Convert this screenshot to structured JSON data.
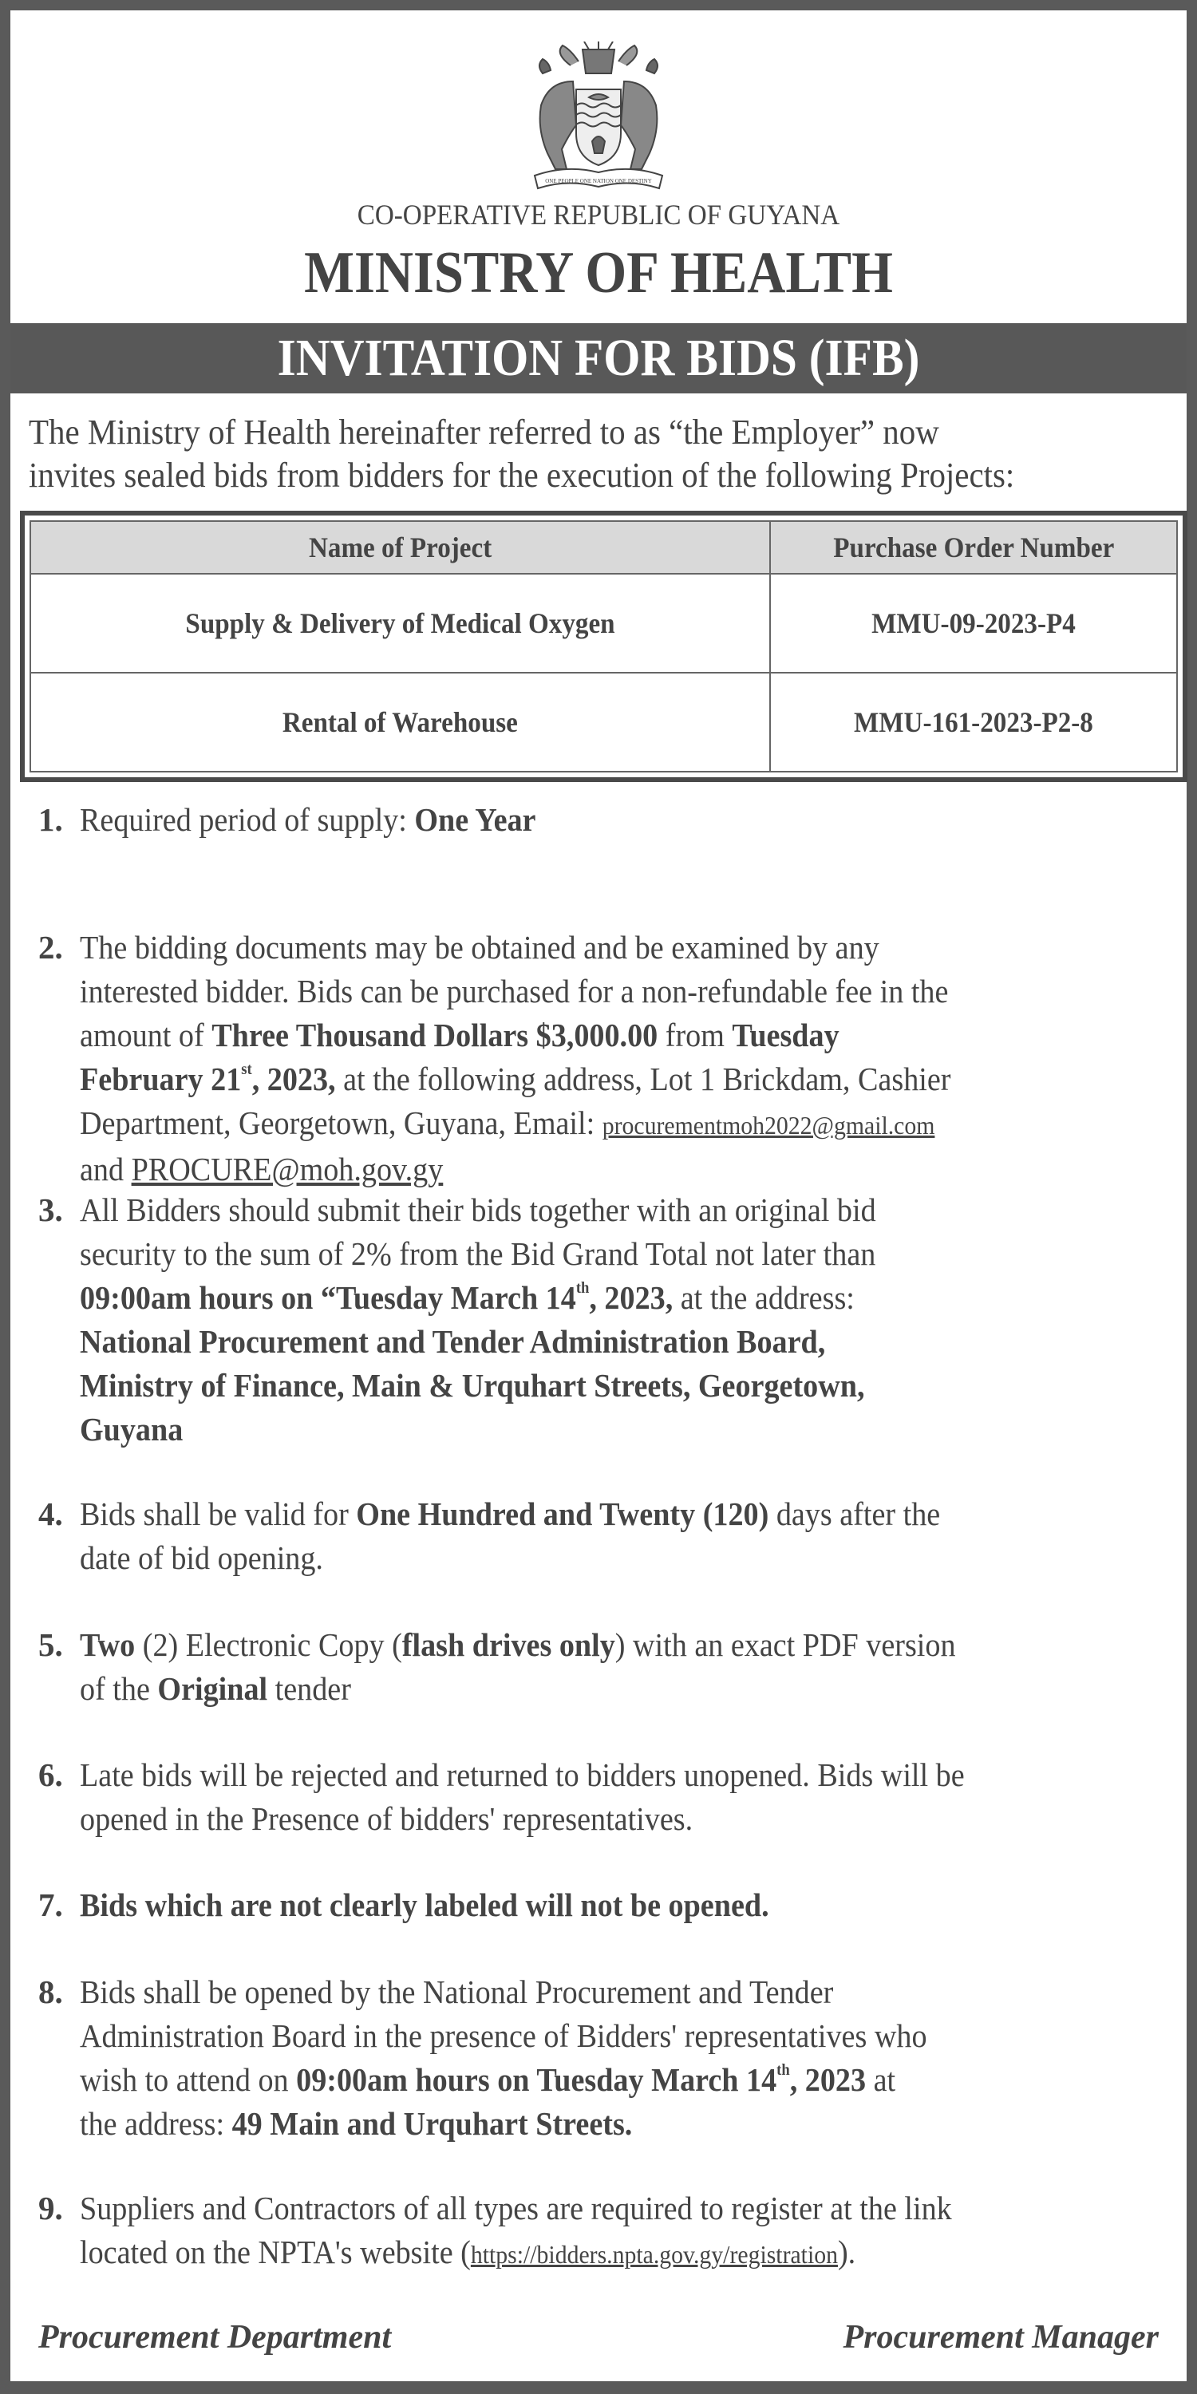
{
  "header": {
    "crest_motto": "ONE PEOPLE ONE NATION ONE DESTINY",
    "republic": "CO-OPERATIVE REPUBLIC OF GUYANA",
    "ministry": "MINISTRY OF HEALTH",
    "banner": "INVITATION FOR BIDS (IFB)"
  },
  "intro": {
    "line1": "The Ministry of Health hereinafter referred to as “the Employer” now",
    "line2": "invites sealed bids from bidders for the execution of the following Projects:"
  },
  "table": {
    "headers": [
      "Name of Project",
      "Purchase Order Number"
    ],
    "rows": [
      [
        "Supply & Delivery of Medical Oxygen",
        "MMU-09-2023-P4"
      ],
      [
        "Rental of Warehouse",
        "MMU-161-2023-P2-8"
      ]
    ]
  },
  "items": [
    {
      "num": "1.",
      "lines": [
        [
          {
            "t": "Required period of supply: "
          },
          {
            "t": "One Year",
            "b": true
          }
        ]
      ]
    },
    {
      "num": "2.",
      "lines": [
        [
          {
            "t": "The bidding documents may be obtained and be examined by any"
          }
        ],
        [
          {
            "t": "interested bidder. Bids can be purchased for a non-refundable fee in the"
          }
        ],
        [
          {
            "t": "amount of "
          },
          {
            "t": "Three Thousand Dollars $3,000.00",
            "b": true
          },
          {
            "t": " from "
          },
          {
            "t": "Tuesday",
            "b": true
          }
        ],
        [
          {
            "t": "February 21",
            "b": true
          },
          {
            "t": "st",
            "b": true,
            "sup": true
          },
          {
            "t": ", 2023,",
            "b": true
          },
          {
            "t": " at the following address, Lot 1 Brickdam, Cashier"
          }
        ],
        [
          {
            "t": "Department, Georgetown, Guyana, Email: "
          },
          {
            "t": "procurementmoh2022@gmail.com",
            "link": true
          }
        ],
        [
          {
            "t": "and "
          },
          {
            "t": "PROCURE@moh.gov.gy",
            "link": true,
            "big": true
          }
        ]
      ]
    },
    {
      "num": "3.",
      "lines": [
        [
          {
            "t": "All Bidders should submit their bids together with an original bid"
          }
        ],
        [
          {
            "t": "security to the sum of 2% from the Bid Grand Total not later than"
          }
        ],
        [
          {
            "t": "09:00am hours on “Tuesday March 14",
            "b": true
          },
          {
            "t": "th",
            "b": true,
            "sup": true
          },
          {
            "t": ", 2023,",
            "b": true
          },
          {
            "t": " at the address:"
          }
        ],
        [
          {
            "t": "National Procurement and Tender Administration Board,",
            "b": true
          }
        ],
        [
          {
            "t": "Ministry of Finance, Main & Urquhart Streets, Georgetown,",
            "b": true
          }
        ],
        [
          {
            "t": "Guyana",
            "b": true
          }
        ]
      ]
    },
    {
      "num": "4.",
      "lines": [
        [
          {
            "t": "Bids shall be valid for "
          },
          {
            "t": "One Hundred and Twenty (120)",
            "b": true
          },
          {
            "t": " days after the"
          }
        ],
        [
          {
            "t": "date of bid opening."
          }
        ]
      ]
    },
    {
      "num": "5.",
      "lines": [
        [
          {
            "t": "Two",
            "b": true
          },
          {
            "t": " (2) Electronic Copy ("
          },
          {
            "t": "flash drives only",
            "b": true
          },
          {
            "t": ") with an exact PDF version"
          }
        ],
        [
          {
            "t": "of the  "
          },
          {
            "t": "Original",
            "b": true
          },
          {
            "t": " tender"
          }
        ]
      ]
    },
    {
      "num": "6.",
      "lines": [
        [
          {
            "t": "Late bids will be rejected and returned to bidders unopened. Bids will be"
          }
        ],
        [
          {
            "t": "opened in the Presence of bidders' representatives."
          }
        ]
      ]
    },
    {
      "num": "7.",
      "lines": [
        [
          {
            "t": "Bids which are not clearly labeled will not be opened.",
            "b": true
          }
        ]
      ]
    },
    {
      "num": "8.",
      "lines": [
        [
          {
            "t": "Bids shall be opened by the National Procurement and Tender"
          }
        ],
        [
          {
            "t": "Administration Board in the presence of Bidders' representatives who"
          }
        ],
        [
          {
            "t": "wish to attend on "
          },
          {
            "t": "09:00am hours on Tuesday March 14",
            "b": true
          },
          {
            "t": "th",
            "b": true,
            "sup": true
          },
          {
            "t": ", 2023",
            "b": true
          },
          {
            "t": " at"
          }
        ],
        [
          {
            "t": "the address: "
          },
          {
            "t": "49 Main and Urquhart Streets.",
            "b": true
          }
        ]
      ]
    },
    {
      "num": "9.",
      "lines": [
        [
          {
            "t": "Suppliers and Contractors of all types are required to register at the link"
          }
        ],
        [
          {
            "t": "located on the NPTA's website ("
          },
          {
            "t": "https://bidders.npta.gov.gy/registration",
            "link": true
          },
          {
            "t": ")."
          }
        ]
      ]
    }
  ],
  "footer": {
    "left": "Procurement Department",
    "right": "Procurement Manager"
  }
}
